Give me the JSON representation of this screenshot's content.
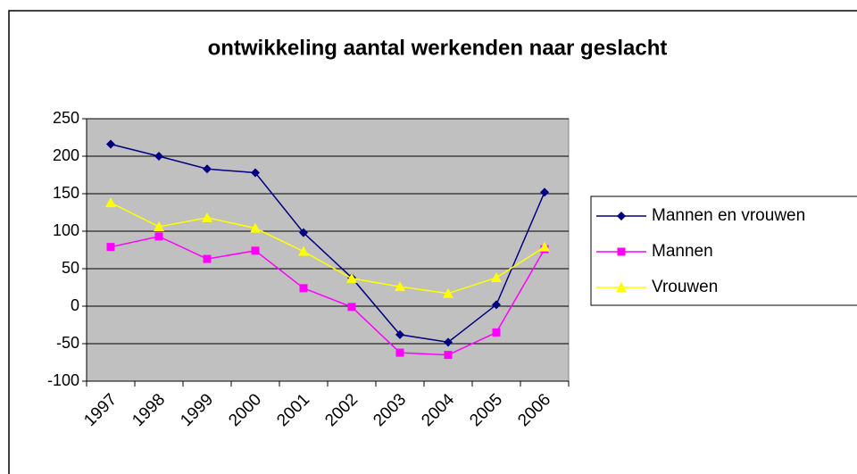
{
  "chart_data": {
    "type": "line",
    "title": "ontwikkeling aantal werkenden naar geslacht",
    "categories": [
      "1997",
      "1998",
      "1999",
      "2000",
      "2001",
      "2002",
      "2003",
      "2004",
      "2005",
      "2006"
    ],
    "series": [
      {
        "name": "Mannen en vrouwen",
        "color": "#000080",
        "marker": "diamond",
        "values": [
          216,
          200,
          183,
          178,
          98,
          38,
          -38,
          -48,
          2,
          152
        ]
      },
      {
        "name": "Mannen",
        "color": "#ff00ff",
        "marker": "square",
        "values": [
          79,
          93,
          63,
          74,
          24,
          -1,
          -62,
          -65,
          -35,
          76
        ]
      },
      {
        "name": "Vrouwen",
        "color": "#ffff00",
        "marker": "triangle",
        "values": [
          138,
          106,
          118,
          104,
          73,
          37,
          26,
          17,
          38,
          79
        ]
      }
    ],
    "ylim": [
      -100,
      250
    ],
    "yticks": [
      -100,
      -50,
      0,
      50,
      100,
      150,
      200,
      250
    ],
    "grid": true,
    "legend": "right"
  }
}
